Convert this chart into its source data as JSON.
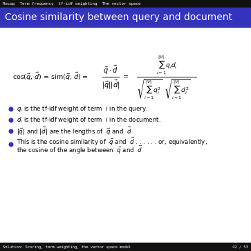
{
  "top_bar_color": "#111111",
  "top_bar_text": "Recap  Term frequency  tf-idf weighting  The vector space",
  "top_bar_text_color": "#ffffff",
  "header_bg_color": "#3333bb",
  "header_text": "Cosine similarity between query and document",
  "header_text_color": "#ffffff",
  "bottom_bar_color": "#111111",
  "bottom_bar_left_text": "Solution: Scoring, term weighting, the vector space model",
  "bottom_bar_right_text": "42 / 53",
  "bottom_bar_text_color": "#ffffff",
  "body_bg_color": "#ffffff",
  "bullet_color": "#3333bb"
}
